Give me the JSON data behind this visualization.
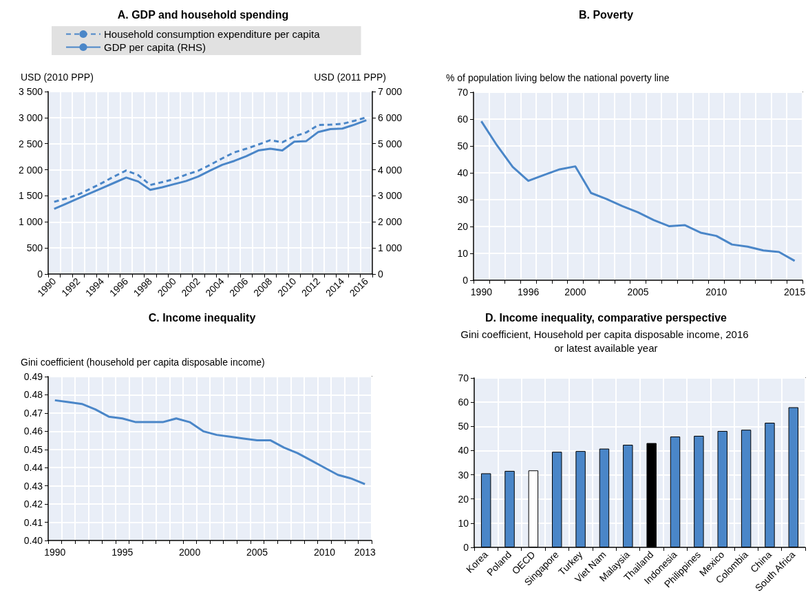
{
  "chart_data": [
    {
      "type": "line",
      "title": "A. GDP and household spending",
      "ylabel": "USD (2010 PPP)",
      "y2label": "USD (2011 PPP)",
      "categories": [
        "1990",
        null,
        "1992",
        null,
        "1994",
        null,
        "1996",
        null,
        "1998",
        null,
        "2000",
        null,
        "2002",
        null,
        "2004",
        null,
        "2006",
        null,
        "2008",
        null,
        "2010",
        null,
        "2012",
        null,
        "2014",
        null,
        "2016"
      ],
      "series": [
        {
          "name": "Household consumption expenditure per capita",
          "color": "#4a86c8",
          "line_style": "dashed",
          "values": [
            1385,
            1450,
            1524,
            1633,
            1748,
            1872,
            1986,
            1897,
            1708,
            1763,
            1822,
            1907,
            1981,
            2095,
            2219,
            2334,
            2403,
            2483,
            2567,
            2527,
            2641,
            2716,
            2860,
            2865,
            2880,
            2939,
            3004
          ]
        },
        {
          "name": "GDP per capita (RHS)",
          "color": "#4a86c8",
          "line_style": "solid",
          "axis": "y2",
          "values": [
            2500,
            2700,
            2900,
            3100,
            3300,
            3500,
            3700,
            3550,
            3230,
            3330,
            3450,
            3570,
            3740,
            3970,
            4190,
            4340,
            4520,
            4740,
            4810,
            4740,
            5080,
            5100,
            5450,
            5560,
            5580,
            5730,
            5900
          ]
        }
      ],
      "ylim": [
        0,
        3500
      ],
      "yticks": [
        0,
        500,
        {
          "value": 1000,
          "label": "1 000"
        },
        {
          "value": 1500,
          "label": "1 500"
        },
        {
          "value": 2000,
          "label": "2 000"
        },
        {
          "value": 2500,
          "label": "2 500"
        },
        {
          "value": 3000,
          "label": "3 000"
        },
        {
          "value": 3500,
          "label": "3 500"
        }
      ],
      "y2lim": [
        0,
        7000
      ],
      "y2ticks": [
        0,
        {
          "value": 1000,
          "label": "1 000"
        },
        {
          "value": 2000,
          "label": "2 000"
        },
        {
          "value": 3000,
          "label": "3 000"
        },
        {
          "value": 4000,
          "label": "4 000"
        },
        {
          "value": 5000,
          "label": "5 000"
        },
        {
          "value": 6000,
          "label": "6 000"
        },
        {
          "value": 7000,
          "label": "7 000"
        }
      ],
      "grid": true,
      "legend": "top",
      "marker": "none"
    },
    {
      "type": "line",
      "title": "B. Poverty",
      "ylabel": "% of population living below the national poverty line",
      "categories": [
        "1990",
        null,
        null,
        "1996",
        null,
        null,
        "2000",
        null,
        null,
        null,
        "2005",
        null,
        null,
        null,
        null,
        "2010",
        null,
        null,
        null,
        null,
        "2015"
      ],
      "series": [
        {
          "color": "#4a86c8",
          "values": [
            59.2,
            50.2,
            42.2,
            37.0,
            39.2,
            41.3,
            42.4,
            32.5,
            30.2,
            27.6,
            25.3,
            22.4,
            20.1,
            20.5,
            17.7,
            16.5,
            13.3,
            12.5,
            11.1,
            10.5,
            7.2
          ]
        }
      ],
      "ylim": [
        0,
        70
      ],
      "yticks": [
        0,
        10,
        20,
        30,
        40,
        50,
        60,
        70
      ],
      "grid": true,
      "marker": "none"
    },
    {
      "type": "line",
      "title": "C. Income inequality",
      "ylabel": "Gini coefficient (household per capita disposable income)",
      "categories": [
        "1990",
        null,
        null,
        null,
        null,
        "1995",
        null,
        null,
        null,
        null,
        "2000",
        null,
        null,
        null,
        null,
        "2005",
        null,
        null,
        null,
        null,
        "2010",
        null,
        null,
        "2013"
      ],
      "series": [
        {
          "color": "#4a86c8",
          "values": [
            0.477,
            0.476,
            0.475,
            0.472,
            0.468,
            0.467,
            0.465,
            0.465,
            0.465,
            0.467,
            0.465,
            0.46,
            0.458,
            0.457,
            0.456,
            0.455,
            0.455,
            0.451,
            0.448,
            0.444,
            0.44,
            0.436,
            0.434,
            0.431
          ]
        }
      ],
      "ylim": [
        0.4,
        0.49
      ],
      "yticks": [
        {
          "value": 0.4,
          "label": "0.40"
        },
        0.41,
        0.42,
        0.43,
        0.44,
        0.45,
        0.46,
        0.47,
        0.48,
        0.49
      ],
      "grid": true,
      "marker": "none"
    },
    {
      "type": "bar",
      "title": "D. Income inequality, comparative perspective",
      "subtitle": "Gini coefficient, Household per capita disposable income, 2016 or latest available year",
      "categories": [
        "Korea",
        "Poland",
        "OECD",
        "Singapore",
        "Turkey",
        "Viet Nam",
        "Malaysia",
        "Thailand",
        "Indonesia",
        "Philippines",
        "Mexico",
        "Colombia",
        "China",
        "South Africa"
      ],
      "values": [
        30.6,
        31.6,
        31.8,
        39.5,
        39.8,
        40.8,
        42.4,
        43.1,
        45.8,
        46.1,
        48.1,
        48.6,
        51.5,
        57.9
      ],
      "colors": [
        "#4a86c8",
        "#4a86c8",
        "#ffffff",
        "#4a86c8",
        "#4a86c8",
        "#4a86c8",
        "#4a86c8",
        "#000000",
        "#4a86c8",
        "#4a86c8",
        "#4a86c8",
        "#4a86c8",
        "#4a86c8",
        "#4a86c8"
      ],
      "ylim": [
        0,
        70
      ],
      "yticks": [
        0,
        10,
        20,
        30,
        40,
        50,
        60,
        70
      ],
      "grid": true
    }
  ]
}
